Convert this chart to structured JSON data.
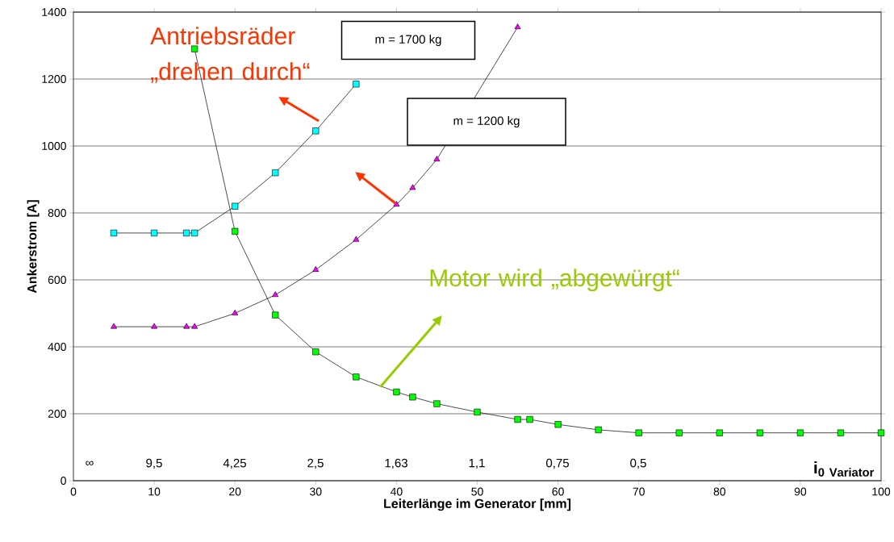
{
  "chart_data": {
    "type": "line",
    "xlabel": "Leiterlänge im Generator [mm]",
    "ylabel": "Ankerstrom [A]",
    "xlim": [
      0,
      100
    ],
    "xticks": [
      0,
      10,
      20,
      30,
      40,
      50,
      60,
      70,
      80,
      90,
      100
    ],
    "ylim": [
      0,
      1400
    ],
    "yticks": [
      0,
      200,
      400,
      600,
      800,
      1000,
      1200,
      1400
    ],
    "grid": "y",
    "series": [
      {
        "name": "m = 1700 kg",
        "color": "#00ffff",
        "marker": "square",
        "x": [
          5,
          10,
          14,
          15,
          20,
          25,
          30,
          35
        ],
        "values": [
          740,
          740,
          740,
          740,
          820,
          920,
          1045,
          1185
        ]
      },
      {
        "name": "m = 1200 kg",
        "color": "#ff00ff",
        "marker": "triangle",
        "x": [
          5,
          10,
          14,
          15,
          20,
          25,
          30,
          35,
          40,
          42,
          45,
          55
        ],
        "values": [
          460,
          460,
          460,
          460,
          500,
          555,
          630,
          720,
          825,
          875,
          960,
          1355
        ]
      },
      {
        "color": "#00ff00",
        "marker": "square",
        "x": [
          15,
          20,
          25,
          30,
          35,
          40,
          42,
          45,
          50,
          55,
          56.5,
          60,
          65,
          70,
          75,
          80,
          85,
          90,
          95,
          100
        ],
        "values": [
          1290,
          745,
          495,
          385,
          310,
          265,
          250,
          230,
          205,
          183,
          183,
          168,
          152,
          143,
          143,
          143,
          143,
          143,
          143,
          143
        ]
      }
    ],
    "annotations": [
      "Antriebsräder „drehen durch“",
      {
        "text": "Motor wird „abgewürgt“",
        "x": 38,
        "y": 280
      },
      "∞",
      "9,5",
      "4,25",
      "2,5",
      "1,63",
      "1,1",
      "0,75",
      "0,5",
      "\\mathbf{i_{0\\ Variator}}"
    ]
  }
}
